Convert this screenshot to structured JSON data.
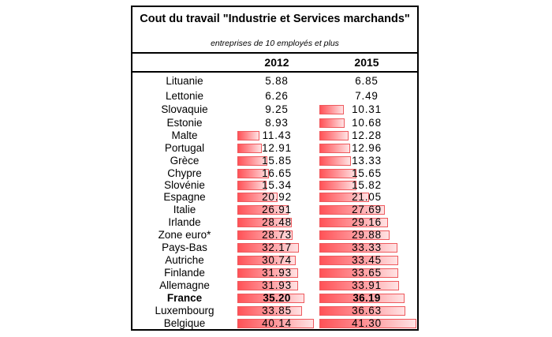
{
  "table": {
    "title": "Cout du travail \"Industrie et Services marchands\"",
    "subtitle": "entreprises de 10 employés et plus",
    "columns": [
      "2012",
      "2015"
    ],
    "bar_color_start": "#ff5257",
    "bar_color_end": "#ffe3e4",
    "bar_border_color": "#ee5a5e",
    "rows": [
      {
        "country": "Lituanie",
        "v2012": "5.88",
        "v2015": "6.85",
        "bold": false
      },
      {
        "country": "Lettonie",
        "v2012": "6.26",
        "v2015": "7.49",
        "bold": false
      },
      {
        "country": "Slovaquie",
        "v2012": "9.25",
        "v2015": "10.31",
        "bold": false
      },
      {
        "country": "Estonie",
        "v2012": "8.93",
        "v2015": "10.68",
        "bold": false
      },
      {
        "country": "Malte",
        "v2012": "11.43",
        "v2015": "12.28",
        "bold": false
      },
      {
        "country": "Portugal",
        "v2012": "12.91",
        "v2015": "12.96",
        "bold": false
      },
      {
        "country": "Grèce",
        "v2012": "15.85",
        "v2015": "13.33",
        "bold": false
      },
      {
        "country": "Chypre",
        "v2012": "16.65",
        "v2015": "15.65",
        "bold": false
      },
      {
        "country": "Slovénie",
        "v2012": "15.34",
        "v2015": "15.82",
        "bold": false
      },
      {
        "country": "Espagne",
        "v2012": "20.92",
        "v2015": "21.05",
        "bold": false
      },
      {
        "country": "Italie",
        "v2012": "26.91",
        "v2015": "27.69",
        "bold": false
      },
      {
        "country": "Irlande",
        "v2012": "28.48",
        "v2015": "29.16",
        "bold": false
      },
      {
        "country": "Zone euro*",
        "v2012": "28.73",
        "v2015": "29.88",
        "bold": false
      },
      {
        "country": "Pays-Bas",
        "v2012": "32.17",
        "v2015": "33.33",
        "bold": false
      },
      {
        "country": "Autriche",
        "v2012": "30.74",
        "v2015": "33.45",
        "bold": false
      },
      {
        "country": "Finlande",
        "v2012": "31.93",
        "v2015": "33.65",
        "bold": false
      },
      {
        "country": "Allemagne",
        "v2012": "31.93",
        "v2015": "33.91",
        "bold": false
      },
      {
        "country": "France",
        "v2012": "35.20",
        "v2015": "36.19",
        "bold": true
      },
      {
        "country": "Luxembourg",
        "v2012": "33.85",
        "v2015": "36.63",
        "bold": false
      },
      {
        "country": "Belgique",
        "v2012": "40.14",
        "v2015": "41.30",
        "bold": false
      }
    ]
  }
}
